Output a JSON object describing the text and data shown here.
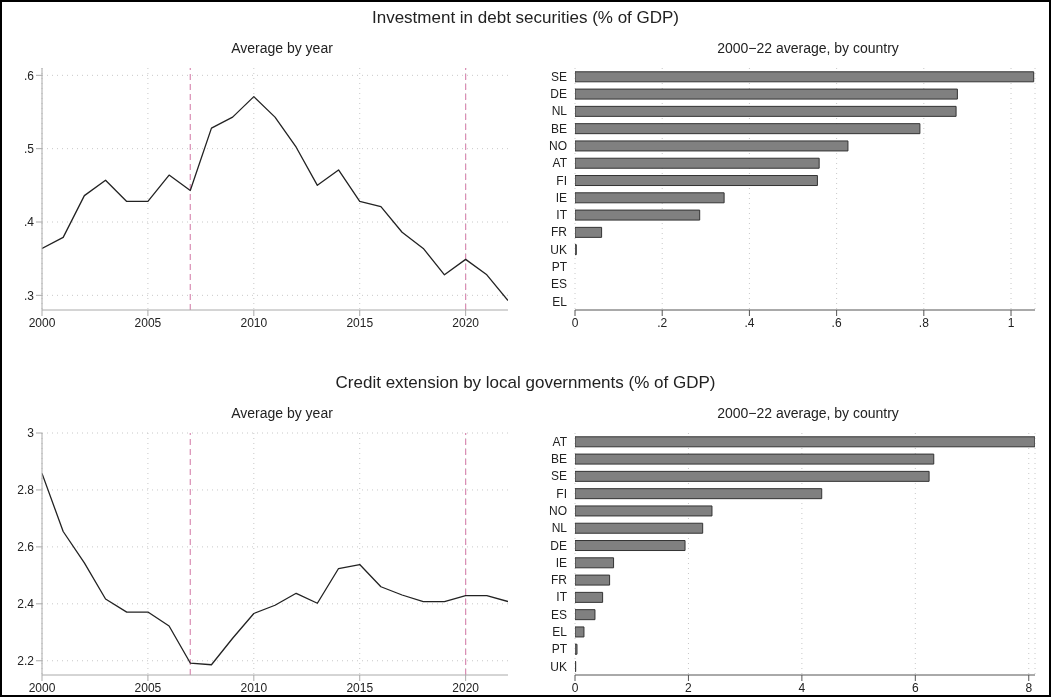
{
  "chart_data": [
    {
      "type": "line",
      "title": "Investment in debt securities (% of GDP)",
      "subtitle": "Average by year",
      "x": [
        2000,
        2001,
        2002,
        2003,
        2004,
        2005,
        2006,
        2007,
        2008,
        2009,
        2010,
        2011,
        2012,
        2013,
        2014,
        2015,
        2016,
        2017,
        2018,
        2019,
        2020,
        2021,
        2022
      ],
      "series": [
        {
          "color": "#222222",
          "values": [
            0.364,
            0.379,
            0.436,
            0.457,
            0.428,
            0.428,
            0.464,
            0.443,
            0.528,
            0.543,
            0.571,
            0.543,
            0.502,
            0.45,
            0.471,
            0.428,
            0.421,
            0.386,
            0.364,
            0.328,
            0.349,
            0.328,
            0.293
          ]
        }
      ],
      "xlim": [
        2000,
        2022
      ],
      "xticks": [
        2000,
        2005,
        2010,
        2015,
        2020
      ],
      "ylim": [
        0.28,
        0.61
      ],
      "yticks": [
        {
          "value": 0.3,
          "label": ".3"
        },
        {
          "value": 0.4,
          "label": ".4"
        },
        {
          "value": 0.5,
          "label": ".5"
        },
        {
          "value": 0.6,
          "label": ".6"
        }
      ],
      "ref_lines": [
        {
          "axis": "x",
          "value": 2007,
          "color": "#d98cb3",
          "line_style": "dashed"
        },
        {
          "axis": "x",
          "value": 2020,
          "color": "#d98cb3",
          "line_style": "dashed"
        }
      ],
      "grid": true,
      "line_style": "solid",
      "marker": "none"
    },
    {
      "type": "bar",
      "orientation": "horizontal",
      "title": "2000−22 average, by country",
      "categories": [
        "SE",
        "DE",
        "NL",
        "BE",
        "NO",
        "AT",
        "FI",
        "IE",
        "IT",
        "FR",
        "UK",
        "PT",
        "ES",
        "EL"
      ],
      "series": [
        {
          "color": "#808080",
          "values": [
            1.052,
            0.877,
            0.874,
            0.791,
            0.626,
            0.56,
            0.556,
            0.342,
            0.286,
            0.061,
            0.003,
            0,
            0,
            0
          ]
        }
      ],
      "xlim": [
        0,
        1.055
      ],
      "xticks": [
        0,
        {
          "value": 0.2,
          "label": ".2"
        },
        {
          "value": 0.4,
          "label": ".4"
        },
        {
          "value": 0.6,
          "label": ".6"
        },
        {
          "value": 0.8,
          "label": ".8"
        },
        1
      ],
      "grid": "x"
    },
    {
      "type": "line",
      "title": "Credit extension by local governments (% of GDP)",
      "subtitle": "Average by year",
      "x": [
        2000,
        2001,
        2002,
        2003,
        2004,
        2005,
        2006,
        2007,
        2008,
        2009,
        2010,
        2011,
        2012,
        2013,
        2014,
        2015,
        2016,
        2017,
        2018,
        2019,
        2020,
        2021,
        2022
      ],
      "series": [
        {
          "color": "#222222",
          "values": [
            2.858,
            2.654,
            2.544,
            2.417,
            2.371,
            2.371,
            2.322,
            2.192,
            2.186,
            2.279,
            2.366,
            2.395,
            2.437,
            2.402,
            2.524,
            2.538,
            2.46,
            2.431,
            2.408,
            2.408,
            2.429,
            2.429,
            2.408
          ]
        }
      ],
      "xlim": [
        2000,
        2022
      ],
      "xticks": [
        2000,
        2005,
        2010,
        2015,
        2020
      ],
      "ylim": [
        2.15,
        3.0
      ],
      "yticks": [
        2.2,
        2.4,
        2.6,
        2.8,
        3
      ],
      "ref_lines": [
        {
          "axis": "x",
          "value": 2007,
          "color": "#d98cb3",
          "line_style": "dashed"
        },
        {
          "axis": "x",
          "value": 2020,
          "color": "#d98cb3",
          "line_style": "dashed"
        }
      ],
      "grid": true,
      "line_style": "solid",
      "marker": "none"
    },
    {
      "type": "bar",
      "orientation": "horizontal",
      "title": "2000−22 average, by country",
      "categories": [
        "AT",
        "BE",
        "SE",
        "FI",
        "NO",
        "NL",
        "DE",
        "IE",
        "FR",
        "IT",
        "ES",
        "EL",
        "PT",
        "UK"
      ],
      "series": [
        {
          "color": "#808080",
          "values": [
            8.107,
            6.325,
            6.243,
            4.35,
            2.415,
            2.251,
            1.94,
            0.68,
            0.61,
            0.487,
            0.352,
            0.158,
            0.035,
            0.012
          ]
        }
      ],
      "xlim": [
        0,
        8.11
      ],
      "xticks": [
        0,
        2,
        4,
        6,
        8
      ],
      "grid": "x"
    }
  ]
}
